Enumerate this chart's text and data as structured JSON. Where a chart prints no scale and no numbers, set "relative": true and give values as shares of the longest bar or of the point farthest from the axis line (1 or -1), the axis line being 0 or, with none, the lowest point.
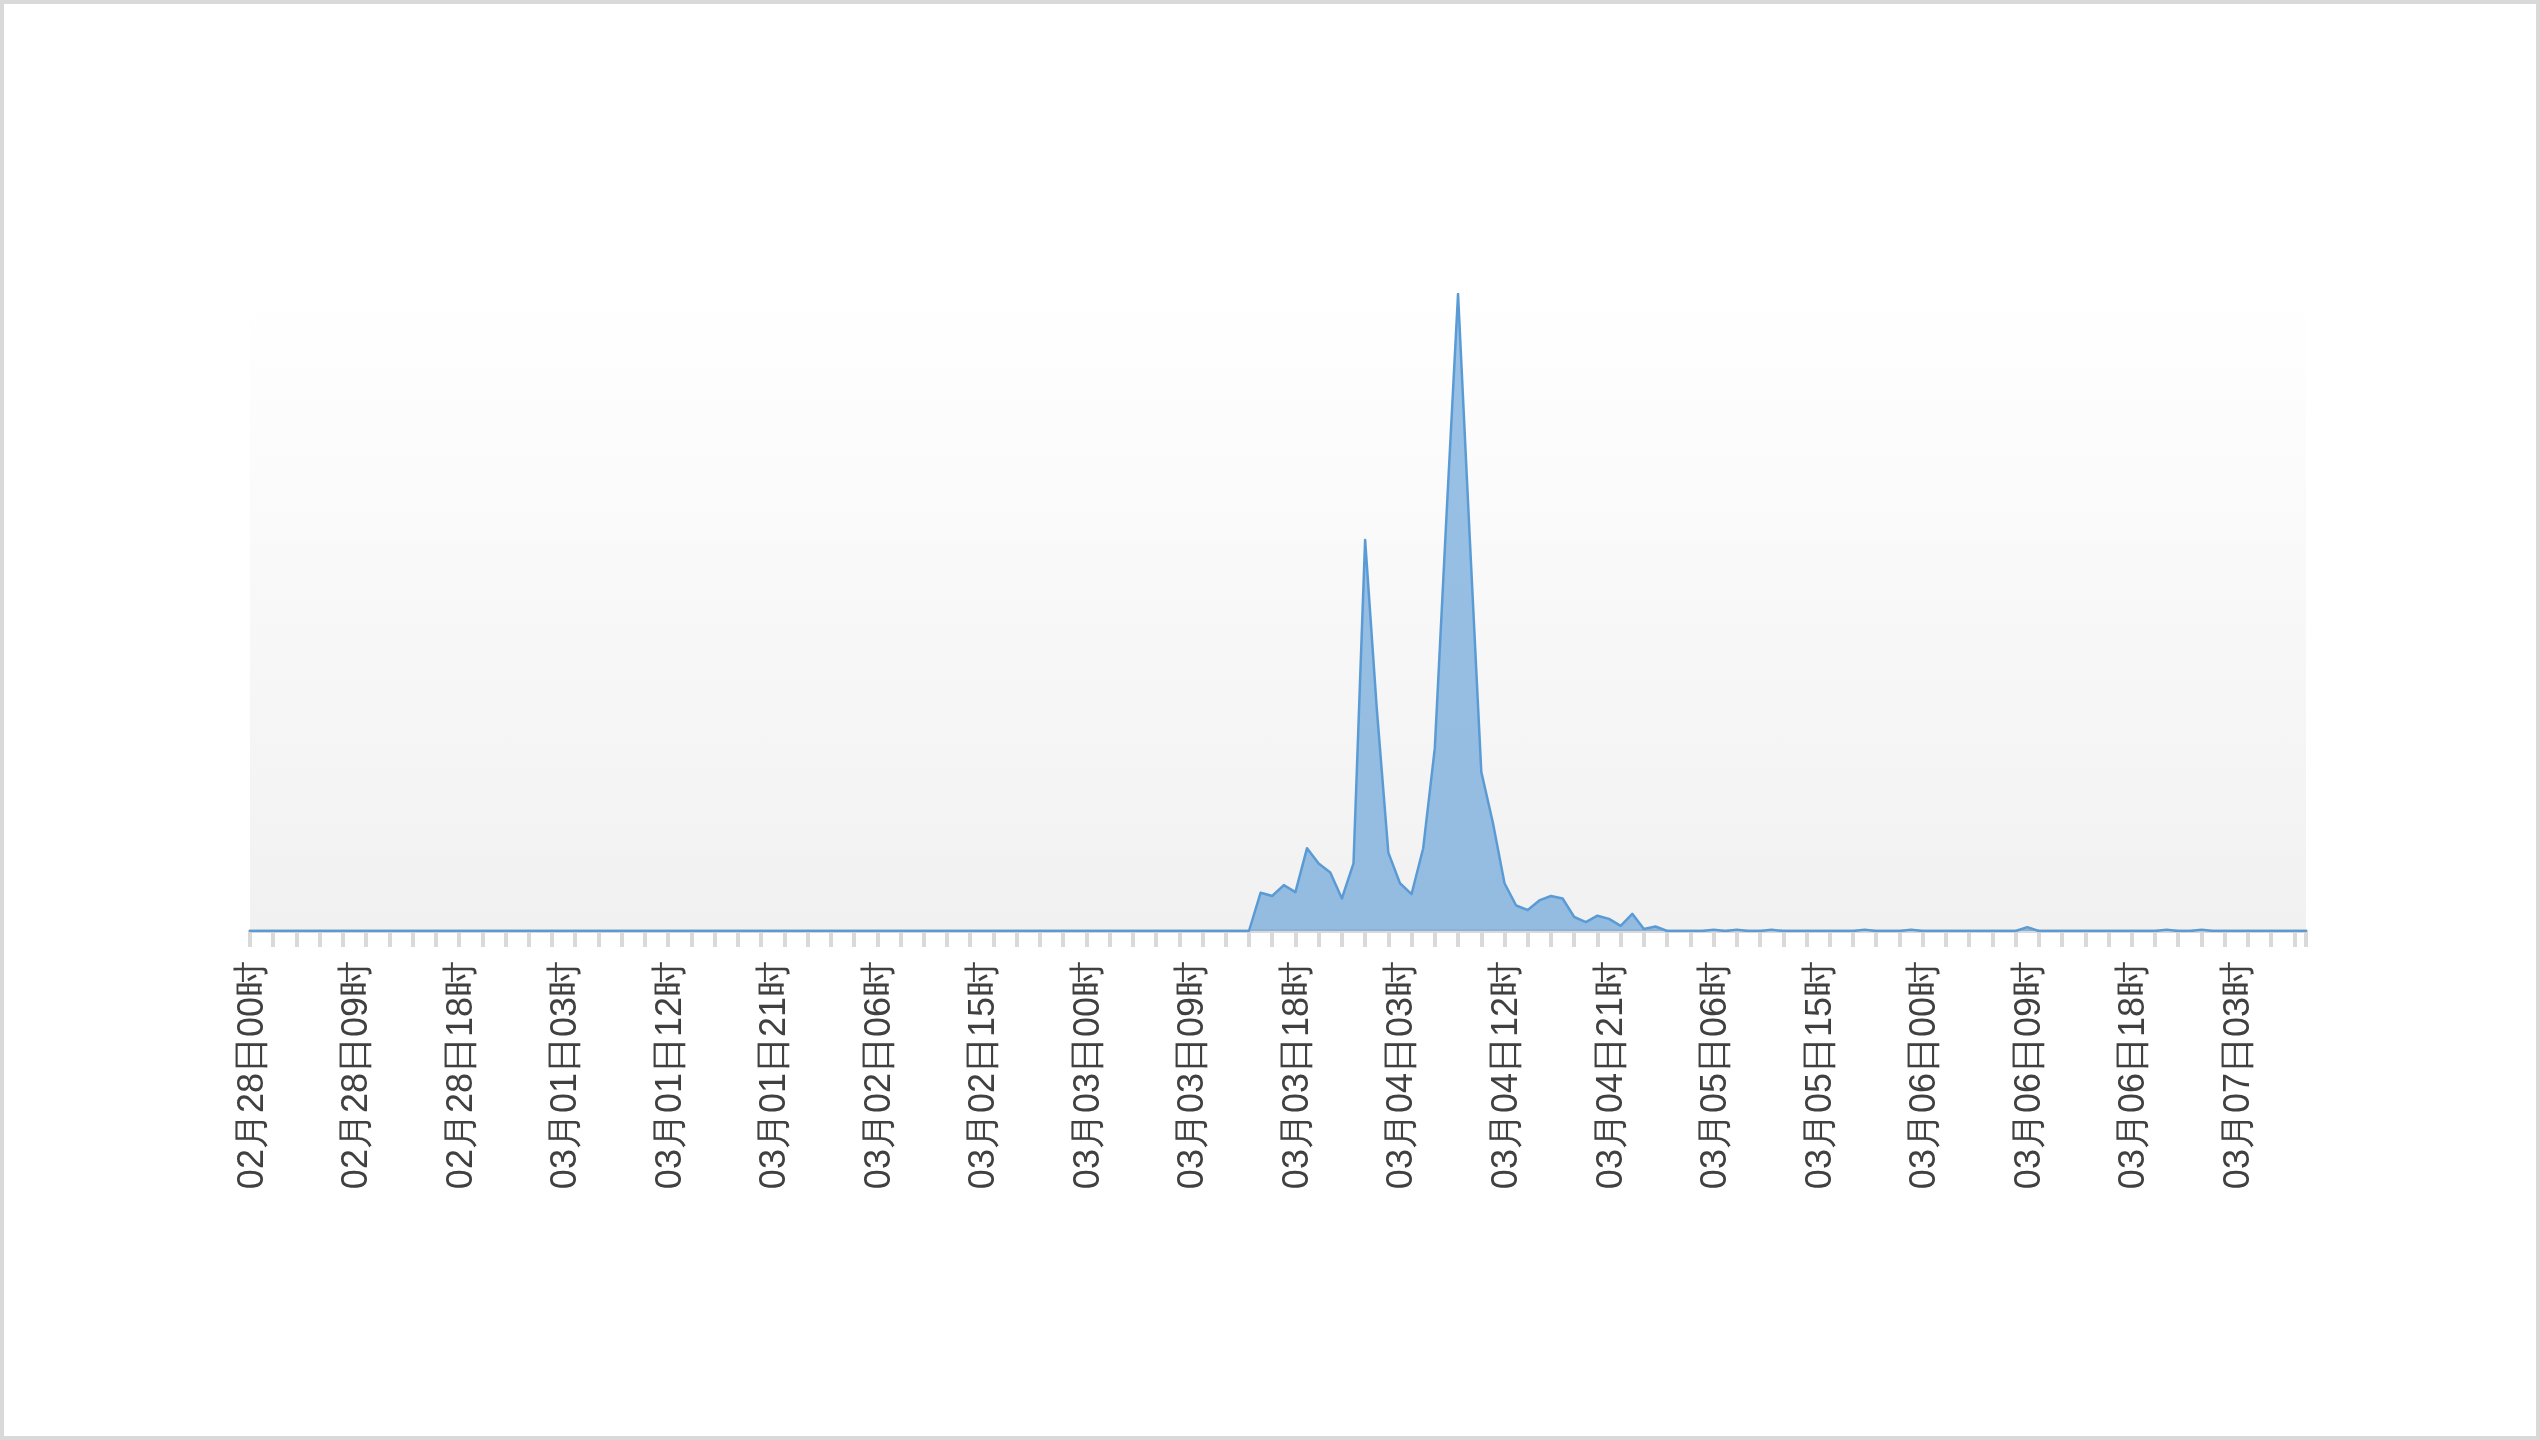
{
  "chart_data": {
    "type": "area",
    "relative": true,
    "color": "#5b9bd5",
    "grid": false,
    "marker": "none",
    "line_style": "solid",
    "categories": [
      "02月28日00时",
      null,
      null,
      null,
      null,
      null,
      null,
      null,
      null,
      "02月28日09时",
      null,
      null,
      null,
      null,
      null,
      null,
      null,
      null,
      "02月28日18时",
      null,
      null,
      null,
      null,
      null,
      null,
      null,
      null,
      "03月01日03时",
      null,
      null,
      null,
      null,
      null,
      null,
      null,
      null,
      "03月01日12时",
      null,
      null,
      null,
      null,
      null,
      null,
      null,
      null,
      "03月01日21时",
      null,
      null,
      null,
      null,
      null,
      null,
      null,
      null,
      "03月02日06时",
      null,
      null,
      null,
      null,
      null,
      null,
      null,
      null,
      "03月02日15时",
      null,
      null,
      null,
      null,
      null,
      null,
      null,
      null,
      "03月03日00时",
      null,
      null,
      null,
      null,
      null,
      null,
      null,
      null,
      "03月03日09时",
      null,
      null,
      null,
      null,
      null,
      null,
      null,
      null,
      "03月03日18时",
      null,
      null,
      null,
      null,
      null,
      null,
      null,
      null,
      "03月04日03时",
      null,
      null,
      null,
      null,
      null,
      null,
      null,
      null,
      "03月04日12时",
      null,
      null,
      null,
      null,
      null,
      null,
      null,
      null,
      "03月04日21时",
      null,
      null,
      null,
      null,
      null,
      null,
      null,
      null,
      "03月05日06时",
      null,
      null,
      null,
      null,
      null,
      null,
      null,
      null,
      "03月05日15时",
      null,
      null,
      null,
      null,
      null,
      null,
      null,
      null,
      "03月06日00时",
      null,
      null,
      null,
      null,
      null,
      null,
      null,
      null,
      "03月06日09时",
      null,
      null,
      null,
      null,
      null,
      null,
      null,
      null,
      "03月06日18时",
      null,
      null,
      null,
      null,
      null,
      null,
      null,
      null,
      "03月07日03时",
      null,
      null,
      null,
      null,
      null,
      null
    ],
    "values": [
      0,
      0,
      0,
      0,
      0,
      0,
      0,
      0,
      0,
      0,
      0,
      0,
      0,
      0,
      0,
      0,
      0,
      0,
      0,
      0,
      0,
      0,
      0,
      0,
      0,
      0,
      0,
      0,
      0,
      0,
      0,
      0,
      0,
      0,
      0,
      0,
      0,
      0,
      0,
      0,
      0,
      0,
      0,
      0,
      0,
      0,
      0,
      0,
      0,
      0,
      0,
      0,
      0,
      0,
      0,
      0,
      0,
      0,
      0,
      0,
      0,
      0,
      0,
      0,
      0,
      0,
      0,
      0,
      0,
      0,
      0,
      0,
      0,
      0,
      0,
      0,
      0,
      0,
      0,
      0,
      0,
      0,
      0,
      0,
      0,
      0,
      0,
      0.06,
      0.055,
      0.072,
      0.061,
      0.13,
      0.106,
      0.092,
      0.051,
      0.106,
      0.614,
      0.35,
      0.123,
      0.075,
      0.058,
      0.13,
      0.287,
      0.65,
      1,
      0.62,
      0.25,
      0.17,
      0.075,
      0.04,
      0.033,
      0.048,
      0.055,
      0.051,
      0.022,
      0.014,
      0.024,
      0.019,
      0.008,
      0.027,
      0.003,
      0.007,
      0,
      0,
      0,
      0,
      0.002,
      0,
      0.002,
      0,
      0,
      0.002,
      0,
      0,
      0,
      0,
      0,
      0,
      0,
      0.002,
      0,
      0,
      0,
      0.002,
      0,
      0,
      0,
      0,
      0,
      0,
      0,
      0,
      0,
      0.006,
      0,
      0,
      0,
      0,
      0,
      0,
      0,
      0,
      0,
      0,
      0,
      0.002,
      0,
      0,
      0.002,
      0,
      0,
      0,
      0,
      0,
      0,
      0,
      0,
      0
    ]
  }
}
